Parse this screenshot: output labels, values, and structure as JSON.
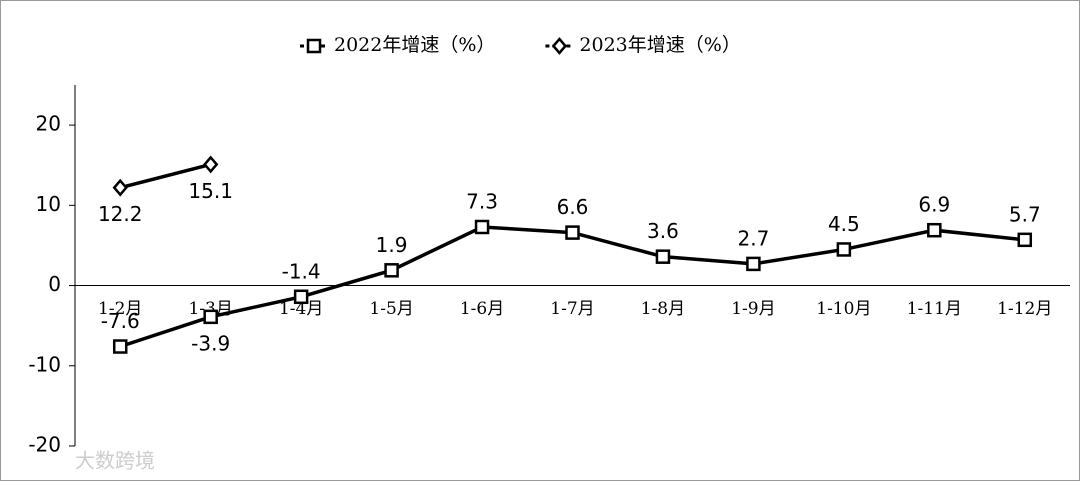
{
  "chart_data": {
    "type": "line",
    "categories": [
      "1-2月",
      "1-3月",
      "1-4月",
      "1-5月",
      "1-6月",
      "1-7月",
      "1-8月",
      "1-9月",
      "1-10月",
      "1-11月",
      "1-12月"
    ],
    "series": [
      {
        "name": "2022年增速（%）",
        "color": "#000000",
        "marker": "square",
        "values": [
          -7.6,
          -3.9,
          -1.4,
          1.9,
          7.3,
          6.6,
          3.6,
          2.7,
          4.5,
          6.9,
          5.7
        ]
      },
      {
        "name": "2023年增速（%）",
        "color": "#000000",
        "marker": "diamond",
        "values": [
          12.2,
          15.1,
          null,
          null,
          null,
          null,
          null,
          null,
          null,
          null,
          null
        ]
      }
    ],
    "ylim": [
      -20,
      25
    ],
    "yticks": [
      -20,
      -10,
      0,
      10,
      20
    ],
    "legend": "top",
    "watermark": "大数跨境"
  }
}
